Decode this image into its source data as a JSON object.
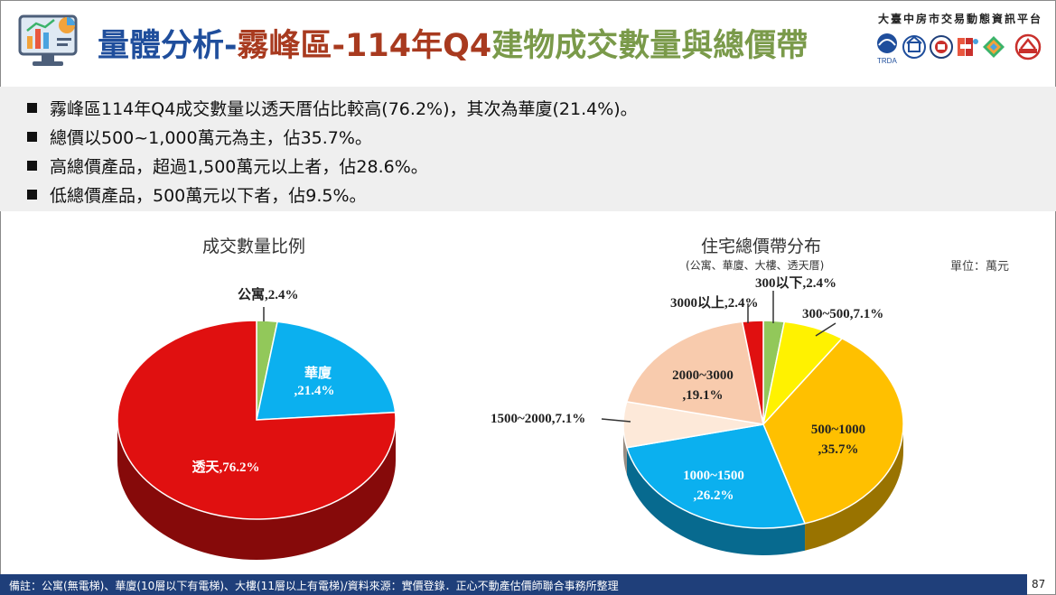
{
  "header": {
    "title_part1": "量體分析-",
    "title_part2": "霧峰區-114年Q4",
    "title_part3": "建物成交數量與總價帶",
    "platform": "大臺中房市交易動態資訊平台",
    "partner_logo_text": "TRDA"
  },
  "bullets": [
    "霧峰區114年Q4成交數量以透天厝佔比較高(76.2%)，其次為華廈(21.4%)。",
    "總價以500~1,000萬元為主，佔35.7%。",
    "高總價產品，超過1,500萬元以上者，佔28.6%。",
    "低總價產品，500萬元以下者，佔9.5%。"
  ],
  "unit": "單位：萬元",
  "footer": {
    "note": "備註：公寓(無電梯)、華廈(10層以下有電梯)、大樓(11層以上有電梯)/資料來源：實價登錄．正心不動產估價師聯合事務所整理",
    "page": "87"
  },
  "chart_data": [
    {
      "type": "pie",
      "title": "成交數量比例",
      "slices": [
        {
          "label": "公寓",
          "value": 2.4,
          "display": "公寓,2.4%",
          "color": "#92c85a"
        },
        {
          "label": "華廈",
          "value": 21.4,
          "display_line1": "華廈",
          "display_line2": ",21.4%",
          "color": "#0bb0ef"
        },
        {
          "label": "透天",
          "value": 76.2,
          "display": "透天,76.2%",
          "color": "#e01010"
        }
      ]
    },
    {
      "type": "pie",
      "title": "住宅總價帶分布",
      "subtitle": "(公寓、華廈、大樓、透天厝)",
      "slices": [
        {
          "label": "300以下",
          "value": 2.4,
          "display": "300以下,2.4%",
          "color": "#92c85a"
        },
        {
          "label": "300~500",
          "value": 7.1,
          "display": "300~500,7.1%",
          "color": "#fff200"
        },
        {
          "label": "500~1000",
          "value": 35.7,
          "display_line1": "500~1000",
          "display_line2": ",35.7%",
          "color": "#ffc000"
        },
        {
          "label": "1000~1500",
          "value": 26.2,
          "display_line1": "1000~1500",
          "display_line2": ",26.2%",
          "color": "#0bb0ef"
        },
        {
          "label": "1500~2000",
          "value": 7.1,
          "display": "1500~2000,7.1%",
          "color": "#fde9d9"
        },
        {
          "label": "2000~3000",
          "value": 19.1,
          "display_line1": "2000~3000",
          "display_line2": ",19.1%",
          "color": "#f8cbad"
        },
        {
          "label": "3000以上",
          "value": 2.4,
          "display": "3000以上,2.4%",
          "color": "#e01010"
        }
      ]
    }
  ]
}
